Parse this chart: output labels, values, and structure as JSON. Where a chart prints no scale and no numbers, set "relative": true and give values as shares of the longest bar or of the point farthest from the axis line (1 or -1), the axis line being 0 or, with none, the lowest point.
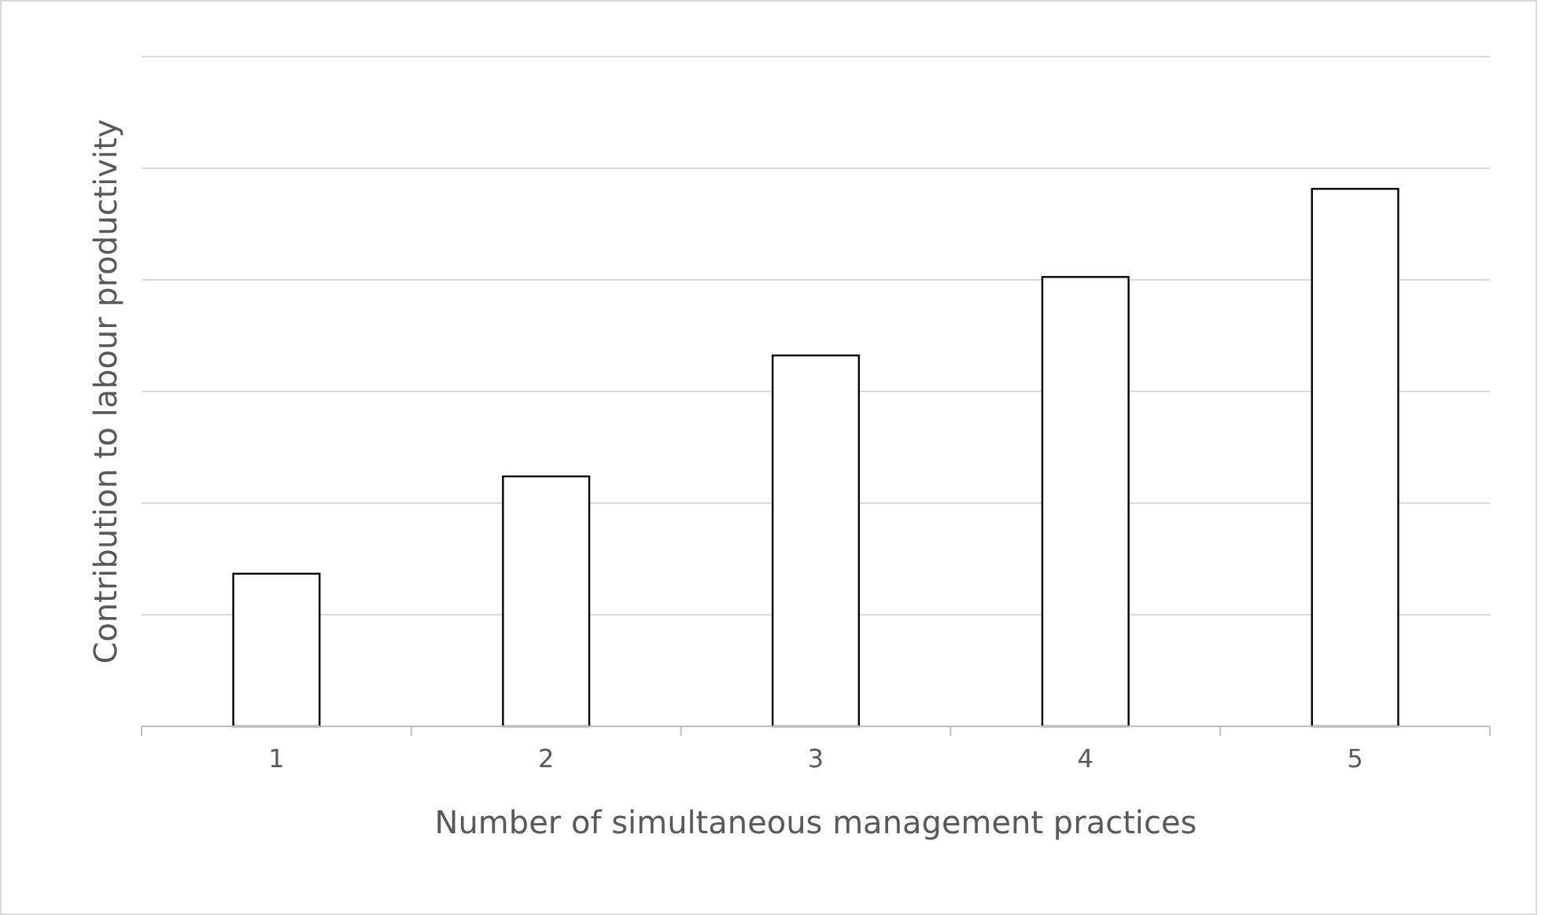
{
  "chart_data": {
    "type": "bar",
    "relative": true,
    "xlabel": "Number of simultaneous management practices",
    "ylabel": "Contribution to labour productivity",
    "categories": [
      "1",
      "2",
      "3",
      "4",
      "5"
    ],
    "values": [
      0.284,
      0.465,
      0.69,
      0.836,
      1
    ],
    "color": "#ffffff",
    "grid": "y"
  }
}
